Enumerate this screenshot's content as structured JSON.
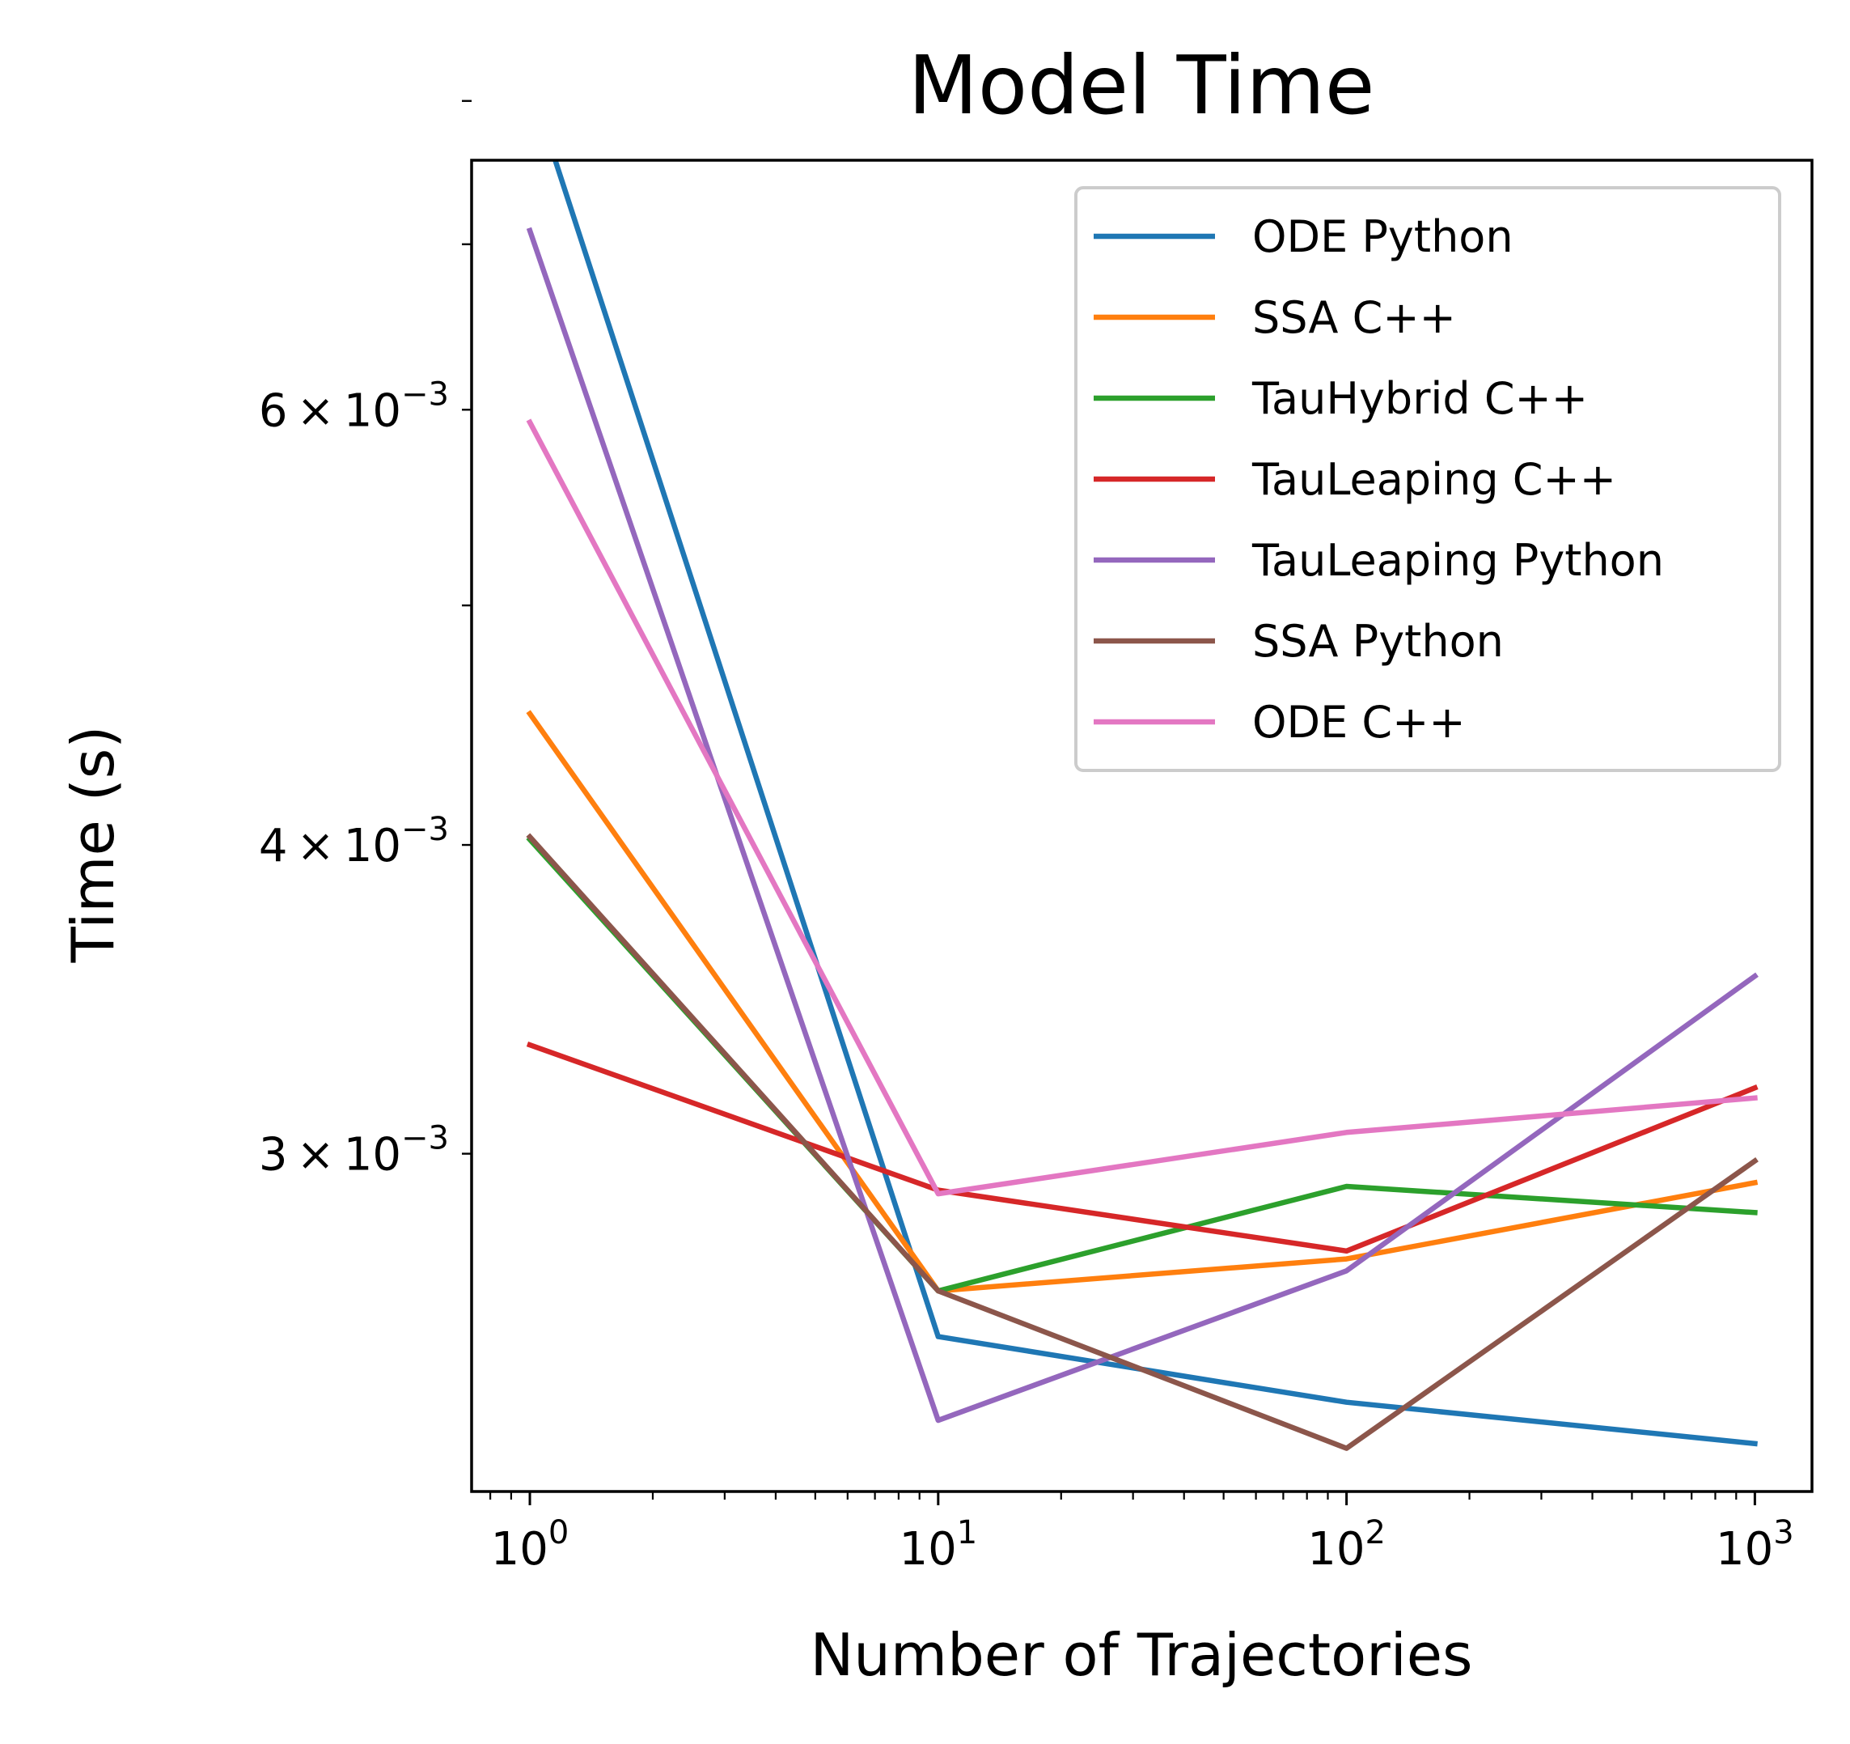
{
  "chart_data": {
    "type": "line",
    "title": "Model Time",
    "xlabel": "Number of Trajectories",
    "ylabel": "Time (s)",
    "xscale": "log",
    "yscale": "log",
    "x": [
      1,
      10,
      100,
      1000
    ],
    "xlim": [
      0.72,
      1380
    ],
    "ylim": [
      0.00219,
      0.00757
    ],
    "xticks": [
      {
        "value": 1,
        "base": "10",
        "exp": "0"
      },
      {
        "value": 10,
        "base": "10",
        "exp": "1"
      },
      {
        "value": 100,
        "base": "10",
        "exp": "2"
      },
      {
        "value": 1000,
        "base": "10",
        "exp": "3"
      }
    ],
    "yticks": [
      {
        "value": 0.006,
        "mantissa": "6",
        "times": "×",
        "base": "10",
        "exp": "−3"
      },
      {
        "value": 0.004,
        "mantissa": "4",
        "times": "×",
        "base": "10",
        "exp": "−3"
      },
      {
        "value": 0.003,
        "mantissa": "3",
        "times": "×",
        "base": "10",
        "exp": "−3"
      }
    ],
    "y_minor_ticks": [
      0.005,
      0.007,
      0.008
    ],
    "grid": false,
    "legend_position": "top-right",
    "series": [
      {
        "name": "ODE Python",
        "color": "#1f77b4",
        "values": [
          0.00814,
          0.00253,
          0.00238,
          0.00229
        ]
      },
      {
        "name": "SSA C++",
        "color": "#ff7f0e",
        "values": [
          0.00452,
          0.00264,
          0.00272,
          0.00292
        ]
      },
      {
        "name": "TauHybrid C++",
        "color": "#2ca02c",
        "values": [
          0.00402,
          0.00264,
          0.00291,
          0.00284
        ]
      },
      {
        "name": "TauLeaping C++",
        "color": "#d62728",
        "values": [
          0.00332,
          0.0029,
          0.00274,
          0.00319
        ]
      },
      {
        "name": "TauLeaping Python",
        "color": "#9467bd",
        "values": [
          0.00709,
          0.00234,
          0.00269,
          0.00354
        ]
      },
      {
        "name": "SSA Python",
        "color": "#8c564b",
        "values": [
          0.00403,
          0.00264,
          0.00228,
          0.00298
        ]
      },
      {
        "name": "ODE C++",
        "color": "#e377c2",
        "values": [
          0.00593,
          0.00289,
          0.00306,
          0.00316
        ]
      }
    ]
  }
}
